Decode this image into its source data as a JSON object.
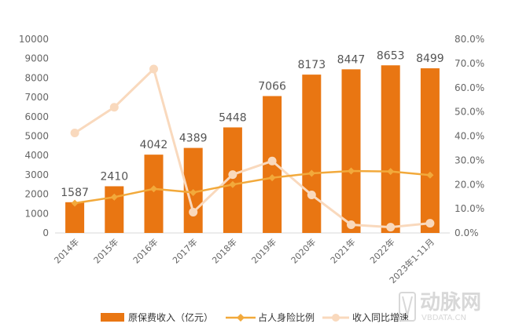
{
  "chart_data": {
    "type": "bar",
    "categories": [
      "2014年",
      "2015年",
      "2016年",
      "2017年",
      "2018年",
      "2019年",
      "2020年",
      "2021年",
      "2022年",
      "2023年1-11月"
    ],
    "series": [
      {
        "name": "原保费收入（亿元）",
        "type": "bar",
        "axis": "left",
        "color": "#E97612",
        "values": [
          1587,
          2410,
          4042,
          4389,
          5448,
          7066,
          8173,
          8447,
          8653,
          8499
        ]
      },
      {
        "name": "占人身险比例",
        "type": "line",
        "axis": "right",
        "color": "#F2A93B",
        "values": [
          12.3,
          14.8,
          18.2,
          16.7,
          20.0,
          22.8,
          24.6,
          25.6,
          25.4,
          23.9
        ]
      },
      {
        "name": "收入同比增速",
        "type": "line",
        "axis": "right",
        "color": "#F9D9BD",
        "values": [
          41.3,
          51.9,
          67.7,
          8.6,
          24.1,
          29.7,
          15.7,
          3.4,
          2.4,
          4.0
        ]
      }
    ],
    "data_labels": [
      "1587",
      "2410",
      "4042",
      "4389",
      "5448",
      "7066",
      "8173",
      "8447",
      "8653",
      "8499"
    ],
    "ylim": [
      0,
      10000
    ],
    "yticks": [
      "0",
      "1000",
      "2000",
      "3000",
      "4000",
      "5000",
      "6000",
      "7000",
      "8000",
      "9000",
      "10000"
    ],
    "y2lim": [
      0,
      80
    ],
    "y2ticks": [
      "0.0%",
      "10.0%",
      "20.0%",
      "30.0%",
      "40.0%",
      "50.0%",
      "60.0%",
      "70.0%",
      "80.0%"
    ],
    "grid": false,
    "legend_position": "bottom"
  },
  "watermark": {
    "brand": "动脉网",
    "url": "VBDATA.CN"
  }
}
